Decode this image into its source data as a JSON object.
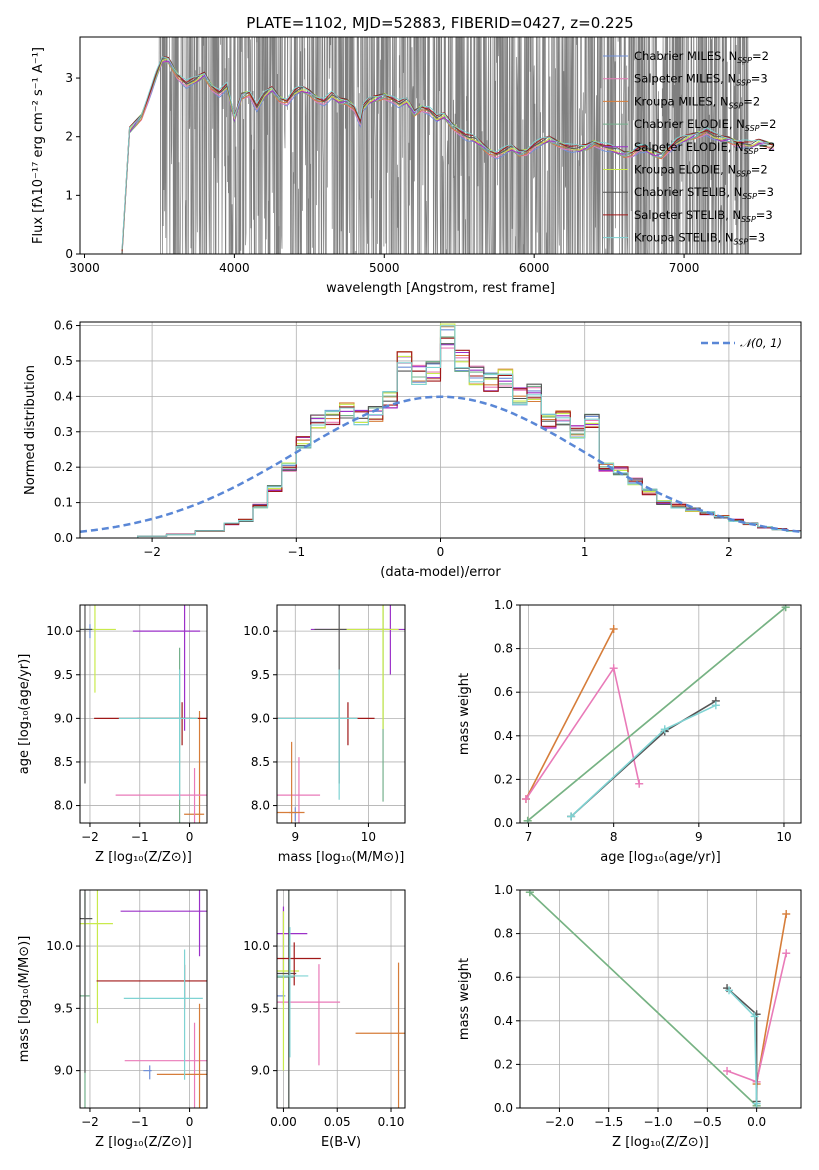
{
  "title": "PLATE=1102, MJD=52883, FIBERID=0427, z=0.225",
  "colors": [
    "#6f8fd8",
    "#e97ab8",
    "#d67d3a",
    "#74b08c",
    "#9b30c8",
    "#c9ea4c",
    "#555555",
    "#a01818",
    "#7fd3d3"
  ],
  "legend": {
    "models": [
      {
        "name": "Chabrier MILES",
        "nssp": "2"
      },
      {
        "name": "Salpeter MILES",
        "nssp": "3"
      },
      {
        "name": "Kroupa MILES",
        "nssp": "2"
      },
      {
        "name": "Chabrier ELODIE",
        "nssp": "2"
      },
      {
        "name": "Salpeter ELODIE",
        "nssp": "2"
      },
      {
        "name": "Kroupa ELODIE",
        "nssp": "2"
      },
      {
        "name": "Chabrier STELIB",
        "nssp": "3"
      },
      {
        "name": "Salpeter STELIB",
        "nssp": "3"
      },
      {
        "name": "Kroupa STELIB",
        "nssp": "3"
      }
    ],
    "nssp_prefix": "N",
    "nssp_sub": "SSP",
    "normal_label": "𝒩(0, 1)"
  },
  "chart_data": [
    {
      "id": "spectrum",
      "type": "line",
      "xlabel": "wavelength [Angstrom, rest frame]",
      "ylabel": "Flux [fλ10⁻¹⁷ erg cm⁻² s⁻¹ A⁻¹]",
      "xlim": [
        2970,
        7780
      ],
      "ylim": [
        0,
        3.7
      ],
      "xticks": [
        3000,
        4000,
        5000,
        6000,
        7000
      ],
      "yticks": [
        0,
        1,
        2,
        3
      ],
      "model_wavelength": [
        3000,
        3250,
        3300,
        3380,
        3430,
        3480,
        3520,
        3560,
        3620,
        3680,
        3740,
        3800,
        3850,
        3900,
        3950,
        4000,
        4050,
        4100,
        4150,
        4200,
        4250,
        4300,
        4350,
        4400,
        4450,
        4500,
        4550,
        4600,
        4650,
        4700,
        4750,
        4800,
        4840,
        4860,
        4900,
        4950,
        5000,
        5050,
        5100,
        5150,
        5200,
        5250,
        5300,
        5350,
        5400,
        5450,
        5500,
        5550,
        5600,
        5650,
        5700,
        5750,
        5800,
        5850,
        5900,
        5950,
        6000,
        6050,
        6100,
        6150,
        6200,
        6250,
        6300,
        6350,
        6400,
        6450,
        6500,
        6550,
        6600,
        6650,
        6700,
        6750,
        6800,
        6850,
        6900,
        6950,
        7000,
        7050,
        7100,
        7150,
        7200,
        7250,
        7300,
        7350,
        7400,
        7450,
        7500,
        7550,
        7600
      ],
      "model_flux": [
        0,
        0,
        2.1,
        2.35,
        2.7,
        3.05,
        3.3,
        3.3,
        3.05,
        2.9,
        2.95,
        3.05,
        2.85,
        2.75,
        2.85,
        2.3,
        2.7,
        2.75,
        2.5,
        2.7,
        2.8,
        2.65,
        2.6,
        2.75,
        2.8,
        2.75,
        2.65,
        2.6,
        2.7,
        2.6,
        2.6,
        2.5,
        2.25,
        2.5,
        2.6,
        2.65,
        2.7,
        2.65,
        2.55,
        2.6,
        2.4,
        2.5,
        2.45,
        2.3,
        2.35,
        2.2,
        2.1,
        2.0,
        1.95,
        1.85,
        1.75,
        1.7,
        1.75,
        1.8,
        1.72,
        1.75,
        1.85,
        1.9,
        1.95,
        1.9,
        1.85,
        1.8,
        1.78,
        1.82,
        1.9,
        1.85,
        1.8,
        1.75,
        1.7,
        1.72,
        1.8,
        1.78,
        1.7,
        1.68,
        1.8,
        1.9,
        1.95,
        2.0,
        2.05,
        2.1,
        2.0,
        1.95,
        1.95,
        1.9,
        1.88,
        1.85,
        1.9,
        1.88,
        1.85
      ],
      "noise_range": [
        3500,
        7430
      ]
    },
    {
      "id": "residuals",
      "type": "line",
      "xlabel": "(data-model)/error",
      "ylabel": "Normed distribution",
      "xlim": [
        -2.5,
        2.5
      ],
      "ylim": [
        0,
        0.61
      ],
      "xticks": [
        -2,
        -1,
        0,
        1,
        2
      ],
      "yticks": [
        0,
        0.1,
        0.2,
        0.3,
        0.4,
        0.5,
        0.6
      ],
      "bin_edges": [
        -2.5,
        -2.3,
        -2.1,
        -1.9,
        -1.7,
        -1.5,
        -1.4,
        -1.3,
        -1.2,
        -1.1,
        -1.0,
        -0.9,
        -0.8,
        -0.7,
        -0.6,
        -0.5,
        -0.4,
        -0.3,
        -0.2,
        -0.1,
        0.0,
        0.1,
        0.2,
        0.3,
        0.4,
        0.5,
        0.6,
        0.7,
        0.8,
        0.9,
        1.0,
        1.1,
        1.2,
        1.3,
        1.4,
        1.5,
        1.6,
        1.7,
        1.8,
        1.9,
        2.0,
        2.1,
        2.2,
        2.3,
        2.4,
        2.5
      ],
      "hist_values": [
        0,
        0,
        0.005,
        0.01,
        0.02,
        0.04,
        0.05,
        0.09,
        0.14,
        0.2,
        0.27,
        0.33,
        0.34,
        0.36,
        0.34,
        0.35,
        0.39,
        0.5,
        0.46,
        0.47,
        0.57,
        0.5,
        0.46,
        0.44,
        0.45,
        0.4,
        0.41,
        0.33,
        0.34,
        0.3,
        0.33,
        0.2,
        0.19,
        0.16,
        0.13,
        0.1,
        0.09,
        0.08,
        0.07,
        0.06,
        0.05,
        0.04,
        0.03,
        0.025,
        0.02
      ],
      "normal_curve": {
        "mean": 0,
        "sigma": 1
      }
    },
    {
      "id": "Z-age",
      "type": "scatter",
      "xlabel": "Z [log₁₀(Z/Z⊙)]",
      "ylabel": "age  [log₁₀(age/yr)]",
      "xlim": [
        -2.2,
        0.35
      ],
      "ylim": [
        7.8,
        10.3
      ],
      "xticks": [
        -2,
        -1,
        0
      ],
      "yticks": [
        8.0,
        8.5,
        9.0,
        9.5,
        10.0
      ],
      "points": [
        [
          -2.0,
          10.02,
          0
        ],
        [
          -1.9,
          10.02,
          5
        ],
        [
          -0.2,
          9.0,
          3
        ],
        [
          0.2,
          7.9,
          2
        ],
        [
          0.1,
          8.12,
          1
        ],
        [
          -0.1,
          10.0,
          4
        ],
        [
          -2.1,
          10.02,
          6
        ],
        [
          -0.15,
          9.0,
          7
        ],
        [
          -0.2,
          9.0,
          8
        ]
      ]
    },
    {
      "id": "mass-age",
      "type": "scatter",
      "xlabel": "mass [log₁₀(M/M⊙)]",
      "ylabel": "",
      "xlim": [
        8.75,
        10.5
      ],
      "ylim": [
        7.8,
        10.3
      ],
      "xticks": [
        9,
        10
      ],
      "yticks": [
        8.0,
        8.5,
        9.0,
        9.5,
        10.0
      ],
      "points": [
        [
          9.0,
          7.92,
          0
        ],
        [
          9.05,
          8.12,
          1
        ],
        [
          8.95,
          7.92,
          2
        ],
        [
          10.2,
          10.02,
          3
        ],
        [
          10.3,
          10.02,
          4
        ],
        [
          10.2,
          10.02,
          5
        ],
        [
          9.6,
          10.02,
          6
        ],
        [
          9.72,
          9.0,
          7
        ],
        [
          9.6,
          9.0,
          8
        ]
      ]
    },
    {
      "id": "age-weight",
      "type": "line",
      "xlabel": "age  [log₁₀(age/yr)]",
      "ylabel": "mass weight",
      "xlim": [
        6.9,
        10.2
      ],
      "ylim": [
        0,
        1
      ],
      "xticks": [
        7,
        8,
        9,
        10
      ],
      "yticks": [
        0.0,
        0.2,
        0.4,
        0.6,
        0.8,
        1.0
      ],
      "series": [
        {
          "x": [
            6.97,
            8.0
          ],
          "y": [
            0.11,
            0.89
          ],
          "c": 2
        },
        {
          "x": [
            6.97,
            8.0,
            8.3
          ],
          "y": [
            0.11,
            0.71,
            0.18
          ],
          "c": 1
        },
        {
          "x": [
            6.99,
            10.02
          ],
          "y": [
            0.01,
            0.99
          ],
          "c": 5
        },
        {
          "x": [
            6.99,
            10.02
          ],
          "y": [
            0.01,
            0.99
          ],
          "c": 3
        },
        {
          "x": [
            7.5,
            8.6,
            9.2
          ],
          "y": [
            0.03,
            0.42,
            0.56
          ],
          "c": 6
        },
        {
          "x": [
            7.5,
            8.6,
            9.2
          ],
          "y": [
            0.03,
            0.43,
            0.54
          ],
          "c": 8
        }
      ]
    },
    {
      "id": "Z-mass",
      "type": "scatter",
      "xlabel": "Z [log₁₀(Z/Z⊙)]",
      "ylabel": "mass [log₁₀(M/M⊙)]",
      "xlim": [
        -2.2,
        0.35
      ],
      "ylim": [
        8.7,
        10.45
      ],
      "xticks": [
        -2,
        -1,
        0
      ],
      "yticks": [
        9.0,
        9.5,
        10.0
      ],
      "points": [
        [
          -0.8,
          9.0,
          0
        ],
        [
          0.1,
          9.08,
          1
        ],
        [
          0.2,
          8.97,
          2
        ],
        [
          -2.1,
          9.6,
          3
        ],
        [
          0.2,
          10.28,
          4
        ],
        [
          -1.85,
          10.18,
          5
        ],
        [
          -2.1,
          10.22,
          6
        ],
        [
          -0.1,
          9.72,
          7
        ],
        [
          -0.1,
          9.58,
          8
        ]
      ]
    },
    {
      "id": "EBV-mass",
      "type": "scatter",
      "xlabel": "E(B-V)",
      "ylabel": "",
      "xlim": [
        -0.006,
        0.113
      ],
      "ylim": [
        8.7,
        10.45
      ],
      "xticks": [
        0.0,
        0.05,
        0.1
      ],
      "yticks": [
        9.0,
        9.5,
        10.0
      ],
      "points": [
        [
          0.0,
          9.6,
          0
        ],
        [
          0.033,
          9.55,
          1
        ],
        [
          0.107,
          9.3,
          2
        ],
        [
          0.005,
          9.75,
          3
        ],
        [
          0.0,
          10.1,
          4
        ],
        [
          0.0,
          9.8,
          5
        ],
        [
          0.005,
          9.78,
          6
        ],
        [
          0.01,
          9.9,
          7
        ],
        [
          0.006,
          9.76,
          8
        ]
      ]
    },
    {
      "id": "Z-weight",
      "type": "line",
      "xlabel": "Z [log₁₀(Z/Z⊙)]",
      "ylabel": "mass weight",
      "xlim": [
        -2.4,
        0.45
      ],
      "ylim": [
        0,
        1
      ],
      "xticks": [
        -2.0,
        -1.5,
        -1.0,
        -0.5,
        0.0
      ],
      "yticks": [
        0.0,
        0.2,
        0.4,
        0.6,
        0.8,
        1.0
      ],
      "series": [
        {
          "x": [
            0.0,
            0.3
          ],
          "y": [
            0.11,
            0.89
          ],
          "c": 2
        },
        {
          "x": [
            -0.3,
            0.0,
            0.3
          ],
          "y": [
            0.17,
            0.12,
            0.71
          ],
          "c": 1
        },
        {
          "x": [
            -2.3,
            0.0
          ],
          "y": [
            0.99,
            0.01
          ],
          "c": 5
        },
        {
          "x": [
            -2.3,
            0.0
          ],
          "y": [
            0.99,
            0.01
          ],
          "c": 3
        },
        {
          "x": [
            -0.3,
            0.0,
            0.0
          ],
          "y": [
            0.55,
            0.43,
            0.03
          ],
          "c": 6
        },
        {
          "x": [
            -0.28,
            -0.02,
            0.0
          ],
          "y": [
            0.54,
            0.42,
            0.02
          ],
          "c": 8
        }
      ]
    }
  ]
}
